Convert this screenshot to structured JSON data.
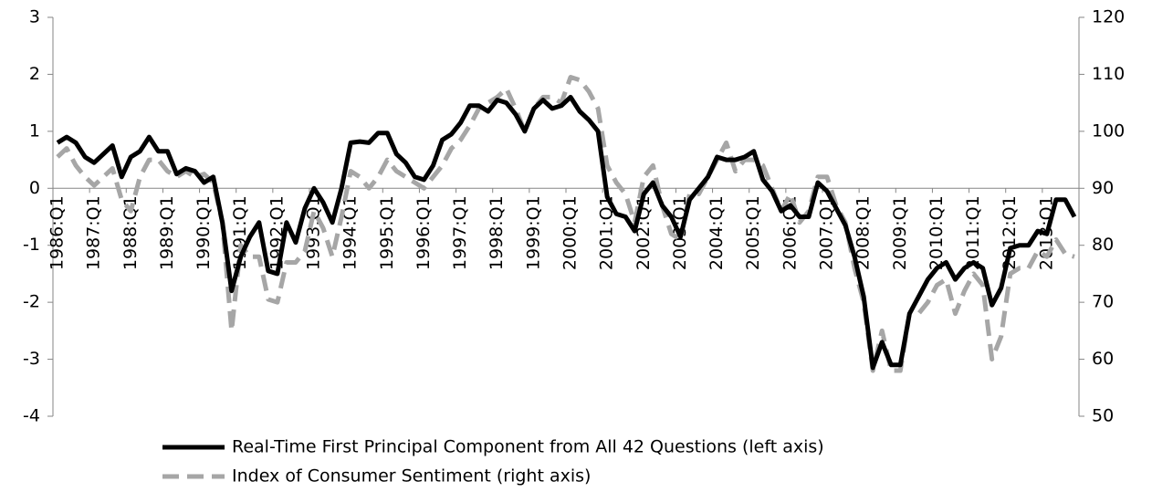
{
  "chart_data": {
    "type": "line",
    "categories": [
      "1986:Q1",
      null,
      null,
      null,
      "1987:Q1",
      null,
      null,
      null,
      "1988:Q1",
      null,
      null,
      null,
      "1989:Q1",
      null,
      null,
      null,
      "1990:Q1",
      null,
      null,
      null,
      "1991:Q1",
      null,
      null,
      null,
      "1992:Q1",
      null,
      null,
      null,
      "1993:Q1",
      null,
      null,
      null,
      "1994:Q1",
      null,
      null,
      null,
      "1995:Q1",
      null,
      null,
      null,
      "1996:Q1",
      null,
      null,
      null,
      "1997:Q1",
      null,
      null,
      null,
      "1998:Q1",
      null,
      null,
      null,
      "1999:Q1",
      null,
      null,
      null,
      "2000:Q1",
      null,
      null,
      null,
      "2001:Q1",
      null,
      null,
      null,
      "2002:Q1",
      null,
      null,
      null,
      "2003:Q1",
      null,
      null,
      null,
      "2004:Q1",
      null,
      null,
      null,
      "2005:Q1",
      null,
      null,
      null,
      "2006:Q1",
      null,
      null,
      null,
      "2007:Q1",
      null,
      null,
      null,
      "2008:Q1",
      null,
      null,
      null,
      "2009:Q1",
      null,
      null,
      null,
      "2010:Q1",
      null,
      null,
      null,
      "2011:Q1",
      null,
      null,
      null,
      "2012:Q1",
      null,
      null,
      null,
      "2013:Q1",
      null,
      null,
      null
    ],
    "series": [
      {
        "name": "Real-Time First Principal Component from All 42 Questions (left axis)",
        "color": "#000000",
        "axis": "y",
        "values": [
          0.8,
          0.9,
          0.8,
          0.55,
          0.45,
          0.6,
          0.75,
          0.2,
          0.55,
          0.65,
          0.9,
          0.65,
          0.65,
          0.25,
          0.35,
          0.3,
          0.1,
          0.2,
          -0.6,
          -1.8,
          -1.2,
          -0.85,
          -0.6,
          -1.45,
          -1.5,
          -0.6,
          -0.95,
          -0.35,
          0,
          -0.25,
          -0.6,
          0,
          0.8,
          0.82,
          0.8,
          0.97,
          0.97,
          0.6,
          0.45,
          0.2,
          0.15,
          0.4,
          0.85,
          0.95,
          1.15,
          1.45,
          1.45,
          1.35,
          1.55,
          1.5,
          1.3,
          1.0,
          1.4,
          1.55,
          1.4,
          1.45,
          1.6,
          1.35,
          1.2,
          1.0,
          -0.15,
          -0.45,
          -0.5,
          -0.75,
          -0.1,
          0.1,
          -0.3,
          -0.5,
          -0.85,
          -0.2,
          0.0,
          0.2,
          0.55,
          0.5,
          0.5,
          0.55,
          0.65,
          0.15,
          -0.05,
          -0.4,
          -0.3,
          -0.5,
          -0.5,
          0.1,
          -0.05,
          -0.35,
          -0.65,
          -1.2,
          -1.9,
          -3.15,
          -2.7,
          -3.1,
          -3.1,
          -2.2,
          -1.9,
          -1.6,
          -1.4,
          -1.3,
          -1.6,
          -1.4,
          -1.3,
          -1.4,
          -2.05,
          -1.75,
          -1.05,
          -1.0,
          -1.0,
          -0.75,
          -0.8,
          -0.2,
          -0.2,
          -0.5
        ]
      },
      {
        "name": "Index of Consumer Sentiment (right axis)",
        "color": "#a6a6a6",
        "axis": "y2",
        "values": [
          95.5,
          97,
          94,
          92,
          90.5,
          92,
          93.5,
          88,
          86,
          92,
          95,
          95,
          93,
          92,
          93,
          92,
          92.5,
          91,
          84,
          65,
          80,
          78,
          78,
          70.5,
          70,
          77,
          77,
          79,
          86,
          83,
          78,
          85,
          93,
          92,
          90,
          92,
          95,
          93,
          92,
          91,
          90,
          92,
          94,
          97,
          98.5,
          101,
          104,
          105,
          106,
          107.5,
          104,
          100,
          104,
          106,
          106,
          105,
          109.5,
          109,
          107,
          104,
          94,
          91,
          89,
          84,
          92,
          94,
          87,
          82,
          81,
          89,
          89,
          92,
          95,
          98,
          93,
          95,
          95,
          94,
          90,
          86,
          89,
          84,
          86,
          92,
          92,
          87,
          84,
          76,
          70,
          58,
          65,
          58,
          58,
          68,
          68,
          70,
          73,
          74,
          68,
          72,
          75,
          73,
          60,
          64,
          75,
          76,
          76,
          79,
          78,
          81,
          78.5,
          78
        ]
      }
    ],
    "ylim": [
      -4,
      3
    ],
    "yticks": [
      -4,
      -3,
      -2,
      -1,
      0,
      1,
      2,
      3
    ],
    "y2lim": [
      50,
      120
    ],
    "y2ticks": [
      50,
      60,
      70,
      80,
      90,
      100,
      110,
      120
    ],
    "legend": "bottom"
  }
}
